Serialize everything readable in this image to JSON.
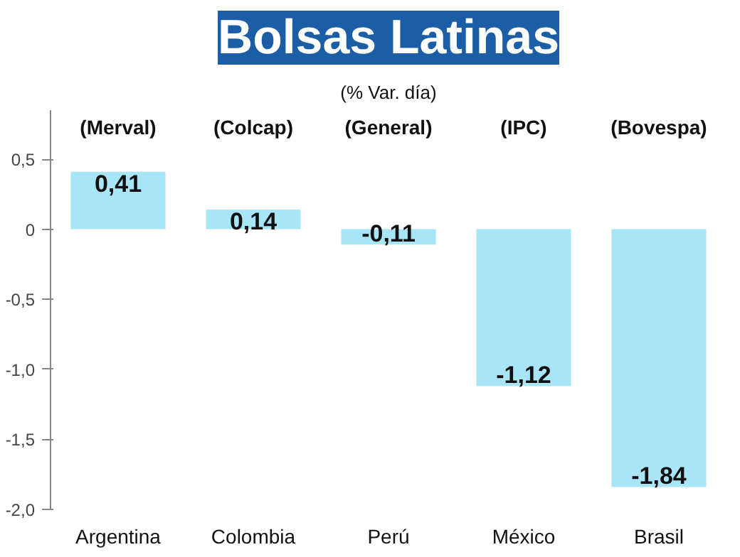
{
  "chart_data": {
    "type": "bar",
    "title": "Bolsas Latinas",
    "subtitle": "(% Var. día)",
    "categories": [
      "Argentina",
      "Colombia",
      "Perú",
      "México",
      "Brasil"
    ],
    "values": [
      0.41,
      0.14,
      -0.11,
      -1.12,
      -1.84
    ],
    "value_labels": [
      "0,41",
      "0,14",
      "-0,11",
      "-1,12",
      "-1,84"
    ],
    "color": "#a8e6f7",
    "ylim": [
      -2.0,
      0.85
    ],
    "yticks": [
      {
        "value": 0.5,
        "label": "0,5"
      },
      0,
      {
        "value": -0.5,
        "label": "-0,5"
      },
      {
        "value": -1.0,
        "label": "-1,0"
      },
      {
        "value": -1.5,
        "label": "-1,5"
      },
      {
        "value": -2.0,
        "label": "-2,0"
      }
    ],
    "annotations": [
      "(Merval)",
      "(Colcap)",
      "(General)",
      "(IPC)",
      "(Bovespa)"
    ],
    "grid": false
  }
}
